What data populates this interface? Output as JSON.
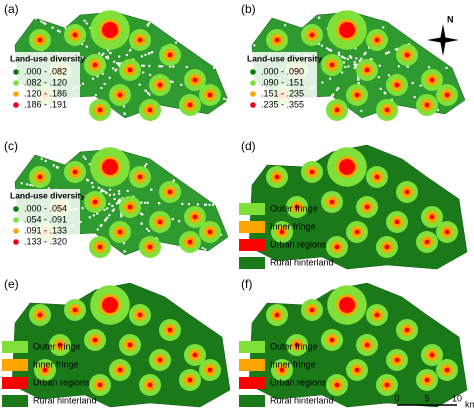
{
  "panels": [
    {
      "label": "(a)",
      "legend_title": "Land-use diversity",
      "legend": [
        ".000 - .082",
        ".082 - .120",
        ".120 - .186",
        ".186 - .191"
      ]
    },
    {
      "label": "(b)",
      "legend_title": "Land-use diversity",
      "legend": [
        ".000 - .090",
        ".090 - .151",
        ".151 - .235",
        ".235 - .355"
      ]
    },
    {
      "label": "(c)",
      "legend_title": "Land-use diversity",
      "legend": [
        ".000 - .054",
        ".054 - .091",
        ".091 - .133",
        ".133 - .320"
      ]
    },
    {
      "label": "(d)",
      "legend": [
        "Outer fringe",
        "Inner fringe",
        "Urban regions",
        "Rural hinterland"
      ]
    },
    {
      "label": "(e)",
      "legend": [
        "Outer fringe",
        "Inner fringe",
        "Urban regions",
        "Rural hinterland"
      ]
    },
    {
      "label": "(f)",
      "legend": [
        "Outer fringe",
        "Inner fringe",
        "Urban regions",
        "Rural hinterland"
      ]
    }
  ],
  "north": "N",
  "scale_bar": {
    "ticks": [
      "0",
      "5",
      "10"
    ],
    "unit": "km"
  }
}
